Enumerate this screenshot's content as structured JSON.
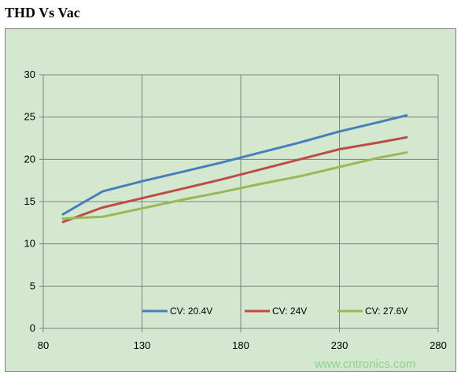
{
  "title": "THD Vs Vac",
  "watermark": "www.cntronics.com",
  "chart_data": {
    "type": "line",
    "title": "THD Vs Vac",
    "xlabel": "",
    "ylabel": "",
    "xlim": [
      80,
      280
    ],
    "ylim": [
      0,
      30
    ],
    "xticks": [
      80,
      130,
      180,
      230,
      280
    ],
    "yticks": [
      0,
      5,
      10,
      15,
      20,
      25,
      30
    ],
    "grid": true,
    "legend_position": "bottom-inside",
    "series": [
      {
        "name": "CV: 20.4V",
        "color": "#4a7ebb",
        "x": [
          90,
          110,
          130,
          150,
          170,
          190,
          210,
          230,
          250,
          264
        ],
        "y": [
          13.5,
          16.2,
          17.4,
          18.5,
          19.6,
          20.8,
          22.0,
          23.3,
          24.4,
          25.2
        ]
      },
      {
        "name": "CV: 24V",
        "color": "#be4b48",
        "x": [
          90,
          110,
          130,
          150,
          170,
          190,
          210,
          230,
          250,
          264
        ],
        "y": [
          12.6,
          14.3,
          15.4,
          16.5,
          17.6,
          18.8,
          20.0,
          21.2,
          22.0,
          22.6
        ]
      },
      {
        "name": "CV: 27.6V",
        "color": "#98b954",
        "x": [
          90,
          110,
          130,
          150,
          170,
          190,
          210,
          230,
          250,
          264
        ],
        "y": [
          13.0,
          13.2,
          14.2,
          15.2,
          16.1,
          17.1,
          18.0,
          19.1,
          20.2,
          20.8
        ]
      }
    ]
  }
}
